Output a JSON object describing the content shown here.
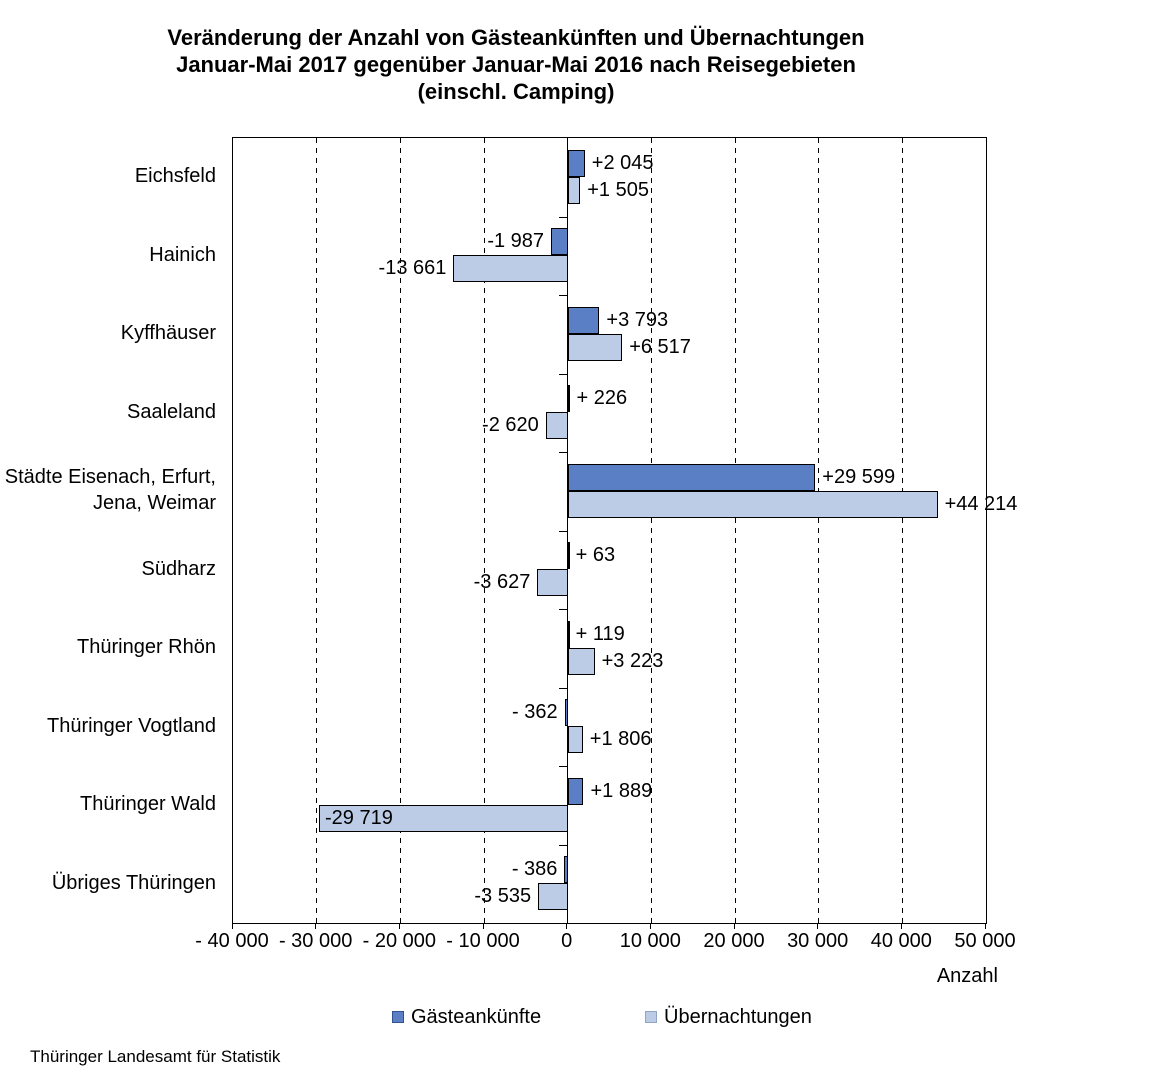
{
  "header": {
    "line1": "Veränderung der Anzahl von Gästeankünften und Übernachtungen",
    "line2": "Januar-Mai 2017 gegenüber  Januar-Mai 2016 nach Reisegebieten",
    "line3": "(einschl. Camping)"
  },
  "axis": {
    "label": "Anzahl",
    "ticks": [
      {
        "value": -40000,
        "label": "- 40 000"
      },
      {
        "value": -30000,
        "label": "- 30 000"
      },
      {
        "value": -20000,
        "label": "- 20 000"
      },
      {
        "value": -10000,
        "label": "- 10 000"
      },
      {
        "value": 0,
        "label": "0"
      },
      {
        "value": 10000,
        "label": "10 000"
      },
      {
        "value": 20000,
        "label": "20 000"
      },
      {
        "value": 30000,
        "label": "30 000"
      },
      {
        "value": 40000,
        "label": "40 000"
      },
      {
        "value": 50000,
        "label": "50 000"
      }
    ]
  },
  "legend": {
    "items": [
      {
        "label": "Gästeankünfte",
        "color": "#5b7fc4",
        "border": "#31538f"
      },
      {
        "label": "Übernachtungen",
        "color": "#bccce6",
        "border": "#8fa5c6"
      }
    ]
  },
  "source": "Thüringer Landesamt für Statistik",
  "chart_data": {
    "type": "bar",
    "orientation": "horizontal",
    "title": "Veränderung der Anzahl von Gästeankünften und Übernachtungen Januar-Mai 2017 gegenüber Januar-Mai 2016 nach Reisegebieten (einschl. Camping)",
    "xlabel": "Anzahl",
    "xlim": [
      -40000,
      50000
    ],
    "grid": "dashed-vertical",
    "legend_position": "bottom",
    "bar_border": "#000000",
    "categories": [
      "Eichsfeld",
      "Hainich",
      "Kyffhäuser",
      "Saaleland",
      "Städte Eisenach, Erfurt,\nJena, Weimar",
      "Südharz",
      "Thüringer Rhön",
      "Thüringer Vogtland",
      "Thüringer Wald",
      "Übriges Thüringen"
    ],
    "series": [
      {
        "name": "Gästeankünfte",
        "color": "#5b7fc4",
        "values": [
          2045,
          -1987,
          3793,
          226,
          29599,
          63,
          119,
          -362,
          1889,
          -386
        ],
        "labels": [
          "+2 045",
          "-1 987",
          "+3 793",
          "+ 226",
          "+29 599",
          "+ 63",
          "+ 119",
          "- 362",
          "+1 889",
          "- 386"
        ],
        "label_inside_indexes": []
      },
      {
        "name": "Übernachtungen",
        "color": "#bccce6",
        "values": [
          1505,
          -13661,
          6517,
          -2620,
          44214,
          -3627,
          3223,
          1806,
          -29719,
          -3535
        ],
        "labels": [
          "+1 505",
          "-13 661",
          "+6 517",
          "-2 620",
          "+44 214",
          "-3 627",
          "+3 223",
          "+1 806",
          "-29 719",
          "-3 535"
        ],
        "label_inside_indexes": [
          8
        ]
      }
    ]
  }
}
